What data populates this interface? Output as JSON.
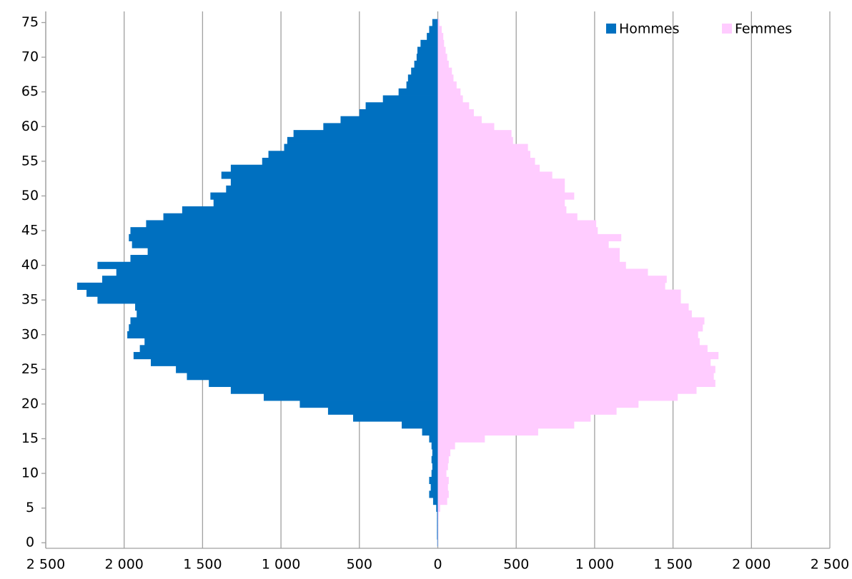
{
  "chart_data": {
    "type": "bar",
    "orientation": "horizontal",
    "y": [
      0,
      1,
      2,
      3,
      4,
      5,
      6,
      7,
      8,
      9,
      10,
      11,
      12,
      13,
      14,
      15,
      16,
      17,
      18,
      19,
      20,
      21,
      22,
      23,
      24,
      25,
      26,
      27,
      28,
      29,
      30,
      31,
      32,
      33,
      34,
      35,
      36,
      37,
      38,
      39,
      40,
      41,
      42,
      43,
      44,
      45,
      46,
      47,
      48,
      49,
      50,
      51,
      52,
      53,
      54,
      55,
      56,
      57,
      58,
      59,
      60,
      61,
      62,
      63,
      64,
      65,
      66,
      67,
      68,
      69,
      70,
      71,
      72,
      73,
      74,
      75
    ],
    "series": [
      {
        "name": "Hommes",
        "color": "#0070c0",
        "values": [
          -3,
          -5,
          -5,
          -5,
          -5,
          -10,
          -30,
          -55,
          -45,
          -55,
          -40,
          -35,
          -40,
          -35,
          -40,
          -55,
          -100,
          -230,
          -540,
          -700,
          -880,
          -1110,
          -1320,
          -1460,
          -1600,
          -1670,
          -1830,
          -1940,
          -1900,
          -1870,
          -1980,
          -1970,
          -1960,
          -1920,
          -1930,
          -2170,
          -2240,
          -2300,
          -2140,
          -2050,
          -2170,
          -1960,
          -1850,
          -1950,
          -1970,
          -1960,
          -1860,
          -1750,
          -1630,
          -1430,
          -1450,
          -1350,
          -1320,
          -1380,
          -1320,
          -1120,
          -1080,
          -980,
          -960,
          -920,
          -730,
          -620,
          -500,
          -460,
          -350,
          -250,
          -200,
          -190,
          -170,
          -150,
          -135,
          -130,
          -110,
          -70,
          -55,
          -35
        ]
      },
      {
        "name": "Femmes",
        "color": "#ffccff",
        "values": [
          2,
          3,
          3,
          3,
          5,
          15,
          60,
          70,
          65,
          70,
          55,
          65,
          70,
          80,
          110,
          300,
          640,
          870,
          975,
          1140,
          1280,
          1530,
          1650,
          1770,
          1760,
          1770,
          1740,
          1790,
          1720,
          1670,
          1660,
          1690,
          1700,
          1620,
          1600,
          1550,
          1550,
          1450,
          1460,
          1340,
          1200,
          1160,
          1160,
          1090,
          1170,
          1020,
          1010,
          890,
          820,
          810,
          870,
          810,
          810,
          730,
          650,
          620,
          590,
          575,
          480,
          470,
          360,
          280,
          230,
          200,
          160,
          145,
          120,
          100,
          90,
          70,
          60,
          50,
          40,
          35,
          25,
          10
        ]
      }
    ],
    "xlim": [
      -2500,
      2500
    ],
    "xticks": [
      {
        "value": -2500,
        "label": "2 500"
      },
      {
        "value": -2000,
        "label": "2 000"
      },
      {
        "value": -1500,
        "label": "1 500"
      },
      {
        "value": -1000,
        "label": "1 000"
      },
      {
        "value": -500,
        "label": "500"
      },
      0,
      500,
      {
        "value": 1000,
        "label": "1 000"
      },
      {
        "value": 1500,
        "label": "1 500"
      },
      {
        "value": 2000,
        "label": "2 000"
      },
      {
        "value": 2500,
        "label": "2 500"
      }
    ],
    "ylim": [
      -0.8,
      76.6
    ],
    "yticks": [
      0,
      5,
      10,
      15,
      20,
      25,
      30,
      35,
      40,
      45,
      50,
      55,
      60,
      65,
      70,
      75
    ],
    "grid": true,
    "legend": "top-right"
  }
}
